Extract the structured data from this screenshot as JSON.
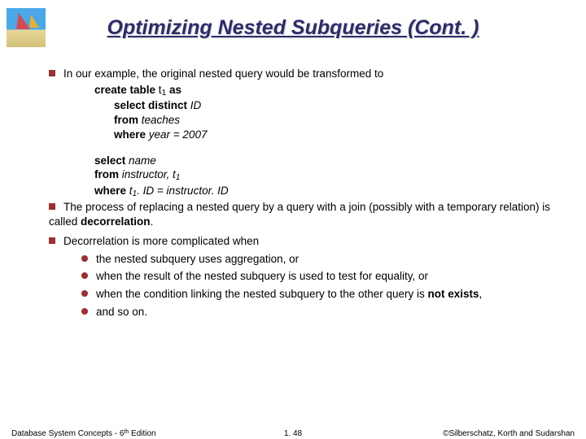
{
  "title": "Optimizing Nested Subqueries (Cont. )",
  "b1": {
    "text": "In our example, the original nested query would be transformed to",
    "l1a": "create table",
    "l1b": " t",
    "l1c": " as",
    "l2a": "select distinct",
    "l2b": " ID",
    "l3a": "from",
    "l3b": " teaches",
    "l4a": "where",
    "l4b": " year = 2007",
    "l5a": "select",
    "l5b": " name",
    "l6a": "from",
    "l6b": " instructor, t",
    "l7a": " where",
    "l7b": " t",
    "l7c": ". ID = instructor. ID"
  },
  "b2": {
    "pre": "The process of replacing a nested query by a query with a join (possibly with a temporary relation) is called ",
    "term": "decorrelation",
    "post": "."
  },
  "b3": "Decorrelation is more complicated when",
  "s1": "the nested subquery uses aggregation, or",
  "s2": "when the result of the nested subquery is used to test for equality, or",
  "s3a": "when the condition linking the nested subquery to the other query is ",
  "s3b": "not exists",
  "s3c": ",",
  "s4": "and so on.",
  "footer": {
    "left_a": "Database System Concepts - 6",
    "left_b": " Edition",
    "center": "1. 48",
    "right": "©Silberschatz, Korth and Sudarshan"
  },
  "colors": {
    "title": "#2c2c6c",
    "bullet": "#9c3030",
    "background": "#ffffff"
  }
}
